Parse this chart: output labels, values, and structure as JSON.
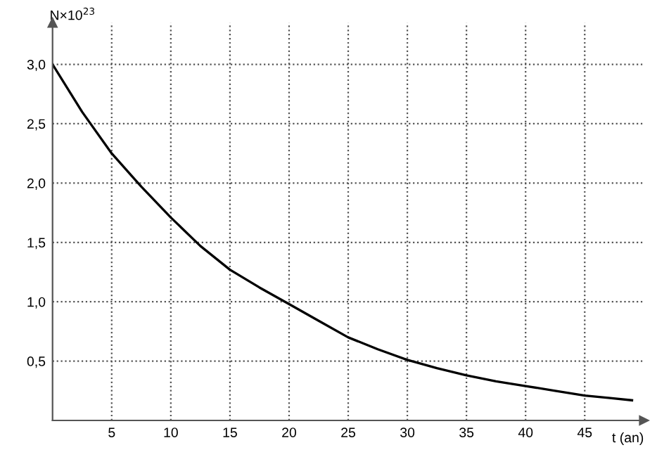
{
  "chart_data": {
    "type": "line",
    "xlabel": "t (an)",
    "ylabel": "N×10$^{23}$",
    "x": [
      0,
      2.5,
      5,
      7.5,
      10,
      12.5,
      15,
      17.5,
      20,
      22.5,
      25,
      27.5,
      30,
      32.5,
      35,
      37.5,
      40,
      42.5,
      45,
      47,
      49
    ],
    "series": [
      {
        "color": "#000000",
        "values": [
          3.0,
          2.6,
          2.25,
          1.97,
          1.71,
          1.47,
          1.27,
          1.12,
          0.98,
          0.84,
          0.7,
          0.6,
          0.51,
          0.44,
          0.38,
          0.33,
          0.29,
          0.25,
          0.21,
          0.19,
          0.17
        ]
      }
    ],
    "xlim": [
      0,
      50
    ],
    "ylim": [
      0,
      3.35
    ],
    "xticks": [
      5,
      10,
      15,
      20,
      25,
      30,
      35,
      40,
      45
    ],
    "yticks": [
      {
        "value": 0.5,
        "label": "0,5"
      },
      {
        "value": 1.0,
        "label": "1,0"
      },
      {
        "value": 1.5,
        "label": "1,5"
      },
      {
        "value": 2.0,
        "label": "2,0"
      },
      {
        "value": 2.5,
        "label": "2,5"
      },
      {
        "value": 3.0,
        "label": "3,0"
      }
    ],
    "grid": true,
    "line_style": "solid",
    "marker": "none"
  }
}
